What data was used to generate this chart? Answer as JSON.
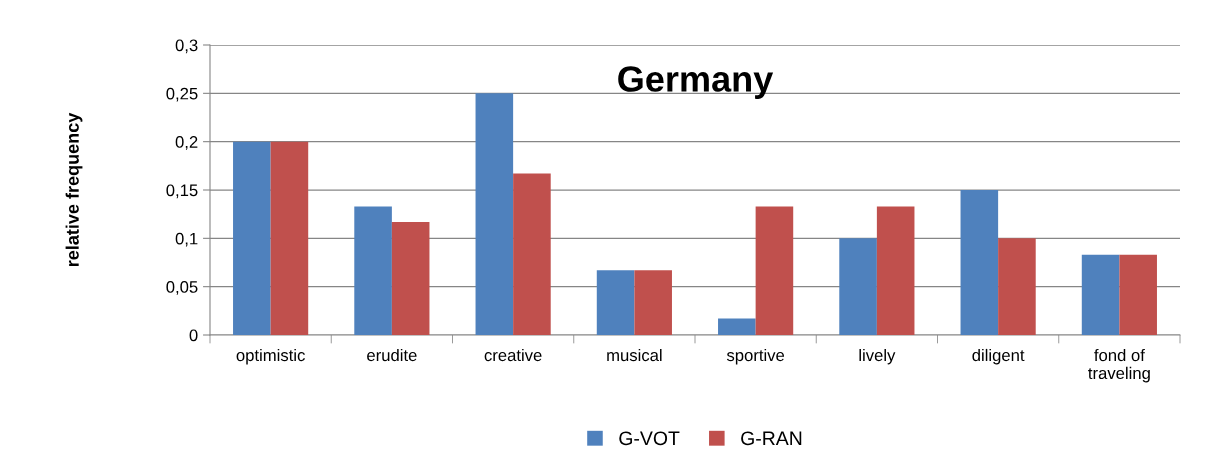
{
  "chart_data": {
    "type": "bar",
    "title": "Germany",
    "ylabel": "relative frequency",
    "categories": [
      "optimistic",
      "erudite",
      "creative",
      "musical",
      "sportive",
      "lively",
      "diligent",
      "fond of\ntraveling"
    ],
    "series": [
      {
        "name": "G-VOT",
        "color": "#4f81bd",
        "values": [
          0.2,
          0.133,
          0.25,
          0.067,
          0.017,
          0.1,
          0.15,
          0.083
        ]
      },
      {
        "name": "G-RAN",
        "color": "#c0504d",
        "values": [
          0.2,
          0.117,
          0.167,
          0.067,
          0.133,
          0.133,
          0.1,
          0.083
        ]
      }
    ],
    "ylim": [
      0,
      0.3
    ],
    "yticks": [
      0,
      {
        "value": 0.05,
        "label": "0,05"
      },
      {
        "value": 0.1,
        "label": "0,1"
      },
      {
        "value": 0.15,
        "label": "0,15"
      },
      {
        "value": 0.2,
        "label": "0,2"
      },
      {
        "value": 0.25,
        "label": "0,25"
      },
      {
        "value": 0.3,
        "label": "0,3"
      }
    ],
    "grid": "y",
    "legend": "bottom"
  }
}
